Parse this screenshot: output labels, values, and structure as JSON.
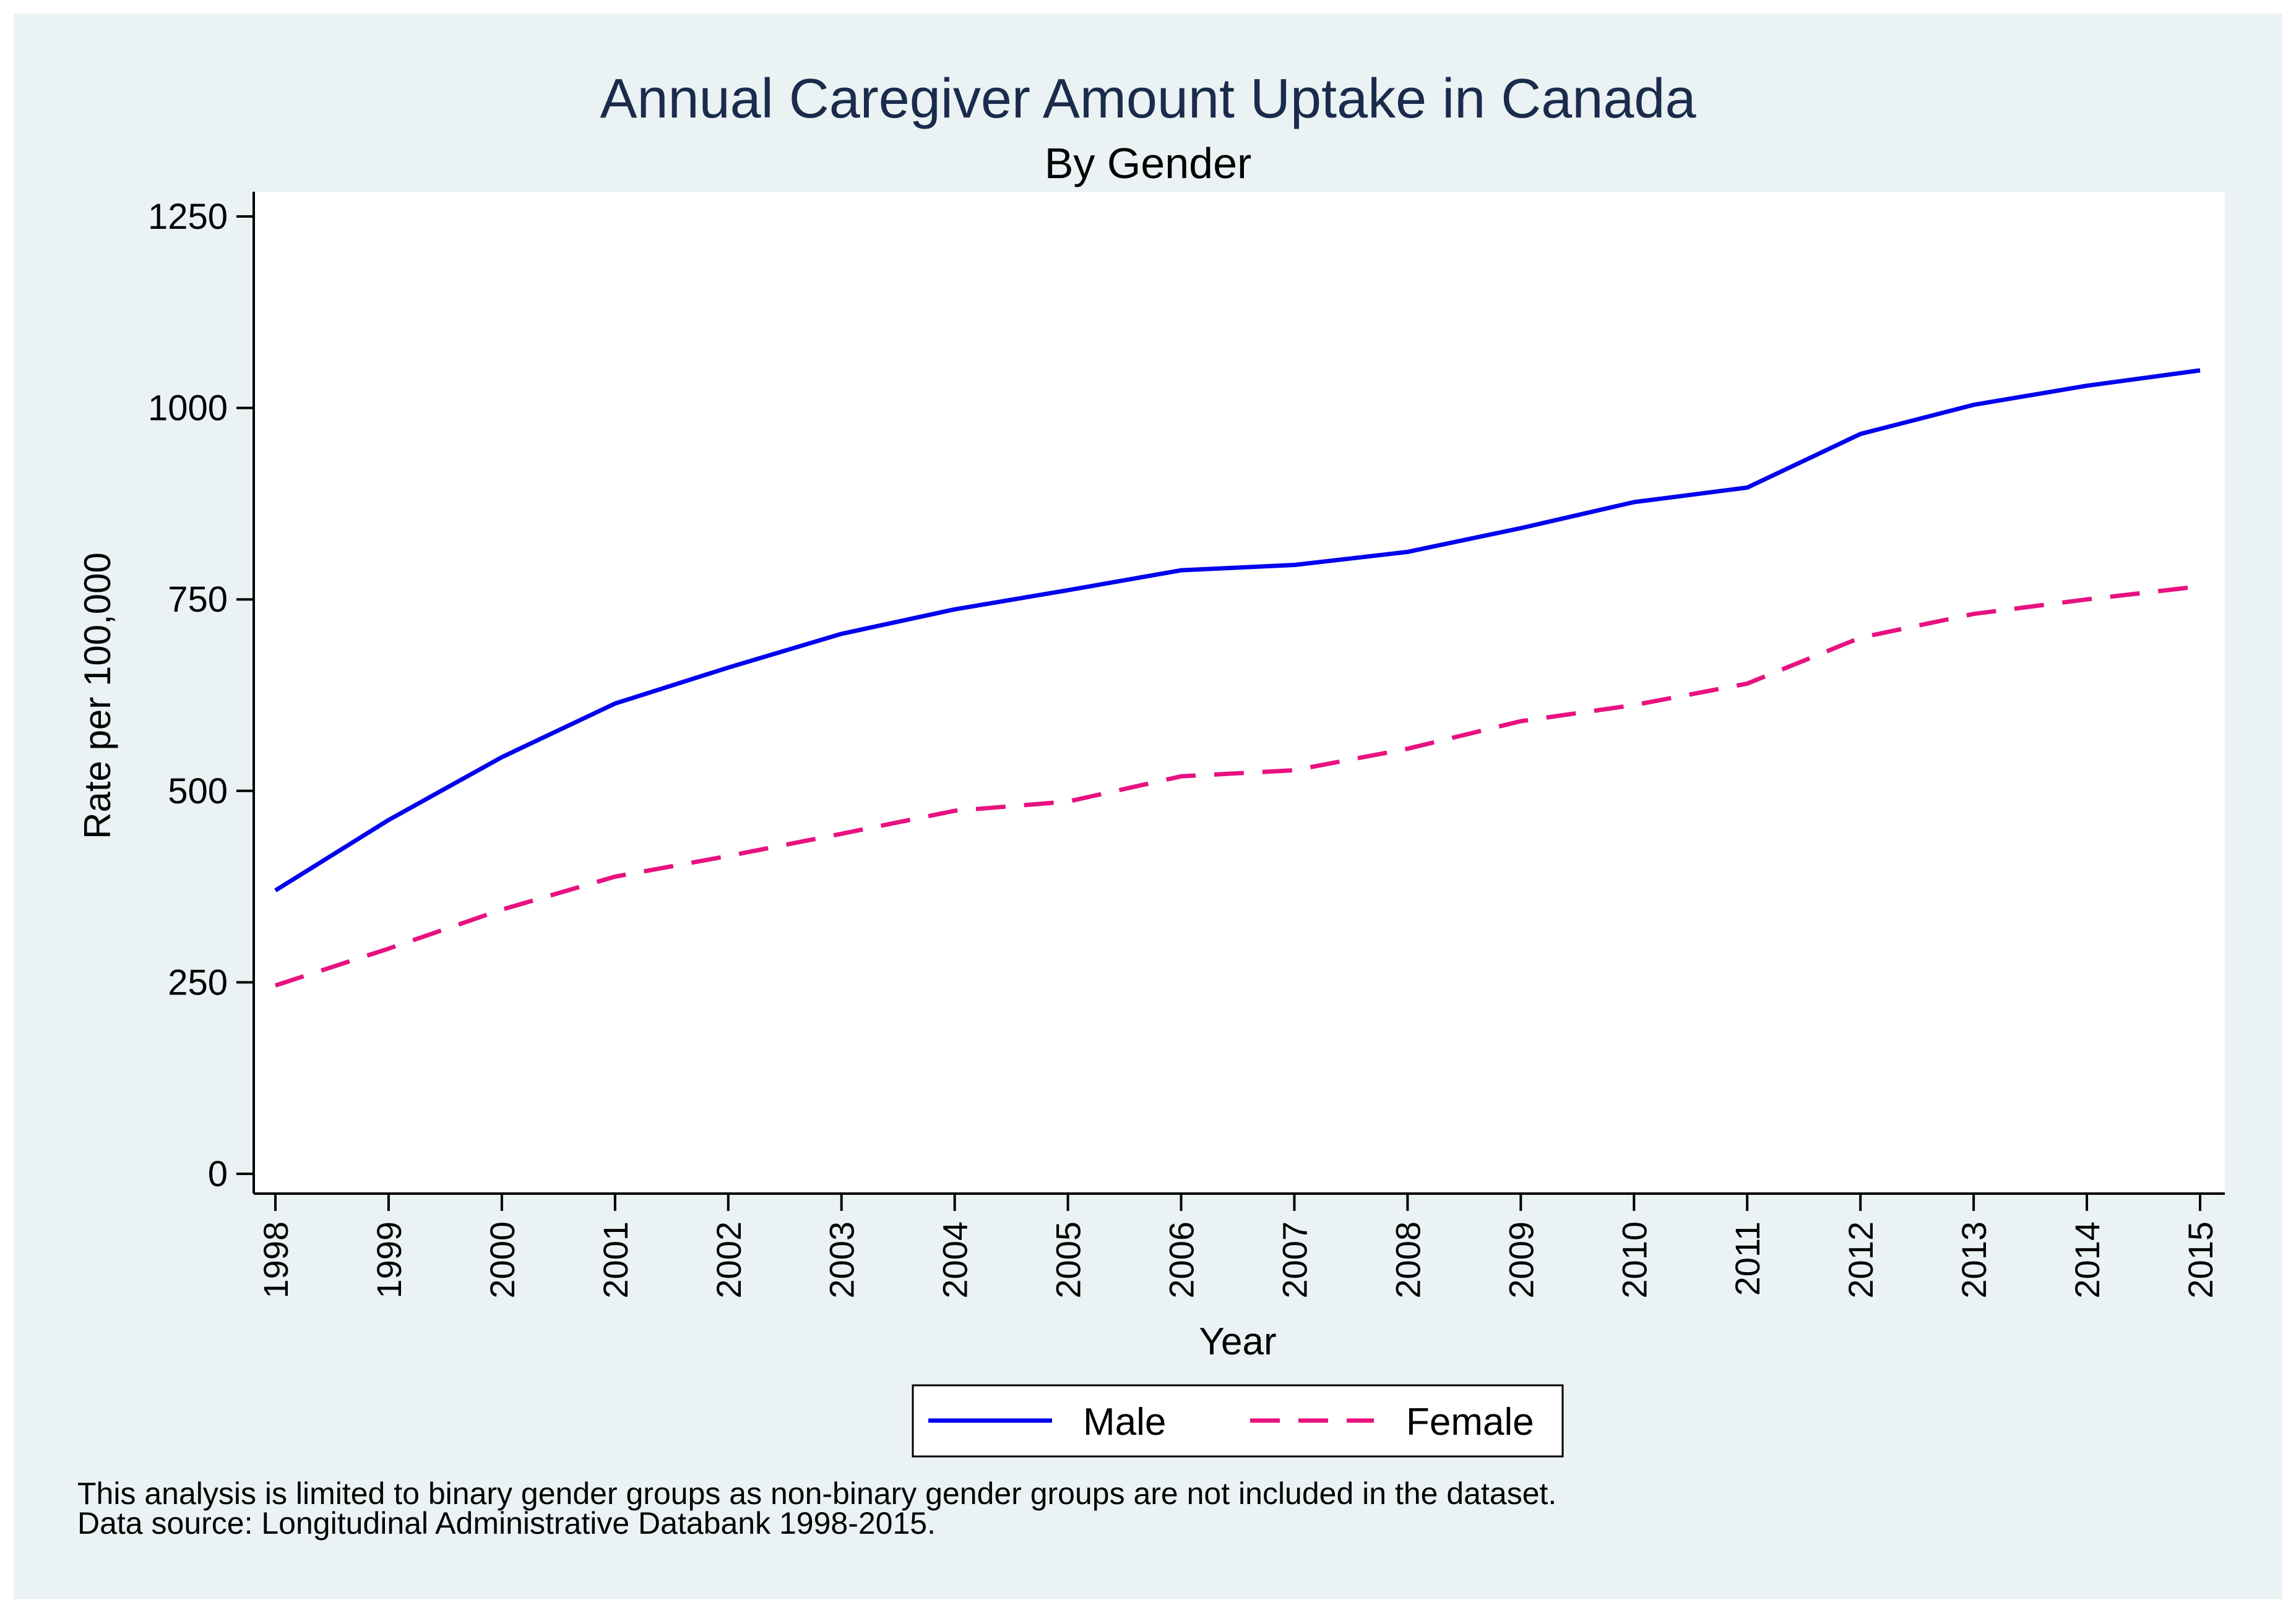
{
  "chart_data": {
    "type": "line",
    "title": "Annual Caregiver Amount Uptake in Canada",
    "subtitle": "By Gender",
    "xlabel": "Year",
    "ylabel": "Rate per 100,000",
    "x": [
      "1998",
      "1999",
      "2000",
      "2001",
      "2002",
      "2003",
      "2004",
      "2005",
      "2006",
      "2007",
      "2008",
      "2009",
      "2010",
      "2011",
      "2012",
      "2013",
      "2014",
      "2015"
    ],
    "ylim": [
      0,
      1250
    ],
    "yticks": [
      0,
      250,
      500,
      750,
      1000,
      1250
    ],
    "series": [
      {
        "name": "Male",
        "color": "#0000ee",
        "style": "solid",
        "values": [
          370,
          462,
          544,
          614,
          661,
          705,
          737,
          762,
          788,
          795,
          812,
          843,
          877,
          896,
          966,
          1004,
          1029,
          1049
        ]
      },
      {
        "name": "Female",
        "color": "#e8117f",
        "style": "dashed",
        "values": [
          246,
          294,
          345,
          388,
          415,
          444,
          474,
          486,
          519,
          527,
          555,
          591,
          612,
          640,
          700,
          731,
          750,
          767
        ]
      }
    ],
    "grid": false,
    "legend": "bottom-center",
    "notes": [
      "This analysis is limited to binary gender groups as non-binary gender groups are not included in the dataset.",
      "Data source: Longitudinal Administrative Databank 1998-2015."
    ],
    "colors": {
      "outer_background": "#eaf2f3",
      "plot_background": "#ffffff",
      "title": "#1a2b4c",
      "text": "#000000"
    }
  }
}
